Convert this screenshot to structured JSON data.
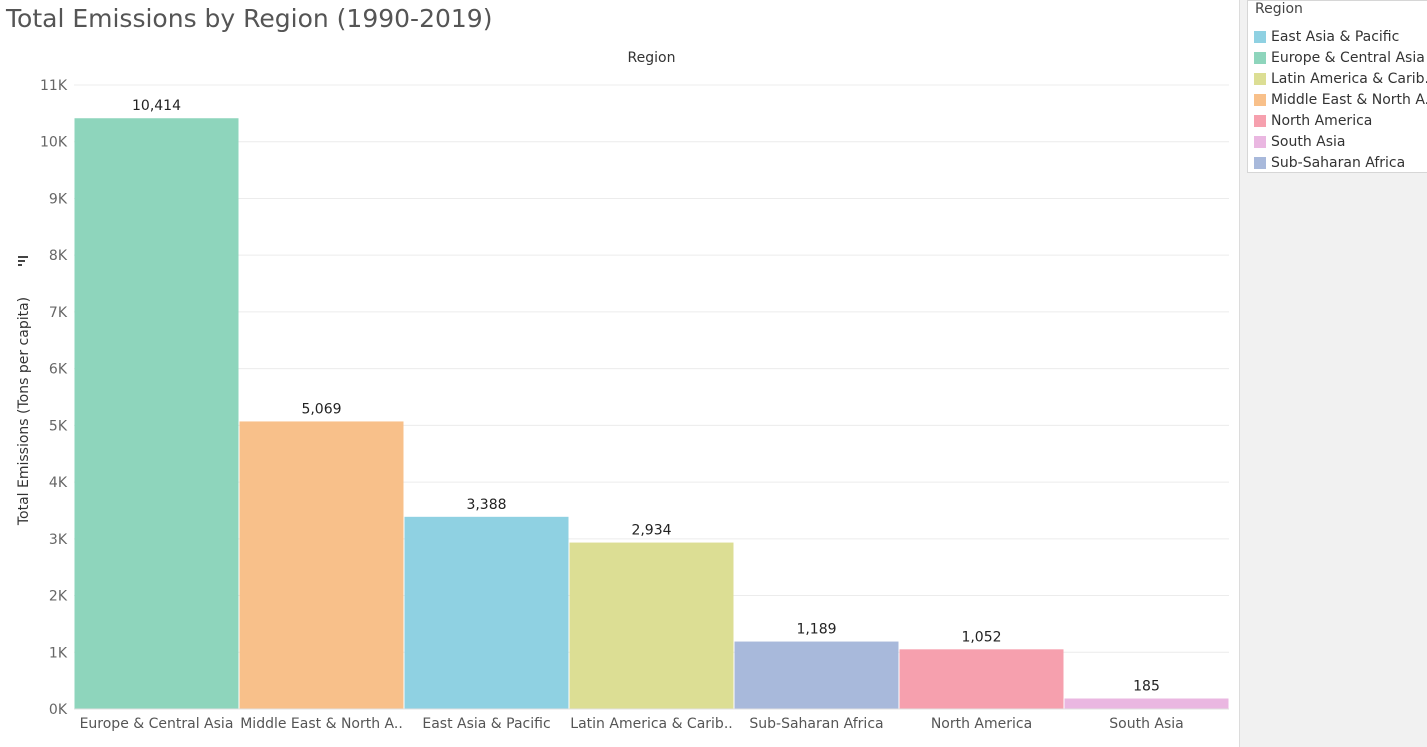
{
  "title": "Total Emissions by Region (1990-2019)",
  "legend": {
    "title": "Region",
    "items": [
      {
        "label": "East Asia & Pacific",
        "color": "#8fd1e2"
      },
      {
        "label": "Europe & Central Asia",
        "color": "#8ed5bc"
      },
      {
        "label": "Latin America & Carib..",
        "color": "#dcde94"
      },
      {
        "label": "Middle East & North A..",
        "color": "#f8c08a"
      },
      {
        "label": "North America",
        "color": "#f6a0ae"
      },
      {
        "label": "South Asia",
        "color": "#eab7e1"
      },
      {
        "label": "Sub-Saharan Africa",
        "color": "#a8b9db"
      }
    ]
  },
  "chart_data": {
    "type": "bar",
    "header": "Region",
    "ylabel": "Total Emissions (Tons per capita)",
    "ylim": [
      0,
      11000
    ],
    "yticks": [
      0,
      1000,
      2000,
      3000,
      4000,
      5000,
      6000,
      7000,
      8000,
      9000,
      10000,
      11000
    ],
    "ytick_labels": [
      "0K",
      "1K",
      "2K",
      "3K",
      "4K",
      "5K",
      "6K",
      "7K",
      "8K",
      "9K",
      "10K",
      "11K"
    ],
    "categories": [
      "Europe & Central Asia",
      "Middle East & North A..",
      "East Asia & Pacific",
      "Latin America & Carib..",
      "Sub-Saharan Africa",
      "North America",
      "South Asia"
    ],
    "values": [
      10414,
      5069,
      3388,
      2934,
      1189,
      1052,
      185
    ],
    "value_labels": [
      "10,414",
      "5,069",
      "3,388",
      "2,934",
      "1,189",
      "1,052",
      "185"
    ],
    "colors": [
      "#8ed5bc",
      "#f8c08a",
      "#8fd1e2",
      "#dcde94",
      "#a8b9db",
      "#f6a0ae",
      "#eab7e1"
    ],
    "grid": true,
    "legend_position": "right"
  }
}
